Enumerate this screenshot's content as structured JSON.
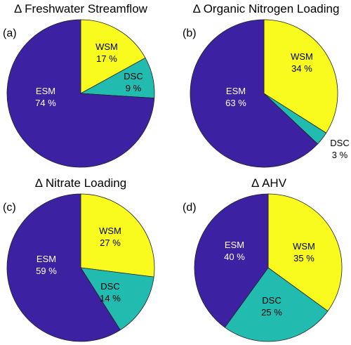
{
  "colors": {
    "ESM": "#3c22a3",
    "WSM": "#f9fa1e",
    "DSC": "#22bbb0",
    "text_dark": "#000000",
    "text_light": "#ffffff"
  },
  "chart_data": [
    {
      "type": "pie",
      "panel": "(a)",
      "title": "Δ Freshwater Streamflow",
      "slices": [
        {
          "label": "WSM",
          "value_text": "17 %",
          "value": 17
        },
        {
          "label": "DSC",
          "value_text": "9 %",
          "value": 9
        },
        {
          "label": "ESM",
          "value_text": "74 %",
          "value": 74
        }
      ]
    },
    {
      "type": "pie",
      "panel": "(b)",
      "title": "Δ Organic Nitrogen Loading",
      "slices": [
        {
          "label": "WSM",
          "value_text": "34 %",
          "value": 34
        },
        {
          "label": "DSC",
          "value_text": "3 %",
          "value": 3
        },
        {
          "label": "ESM",
          "value_text": "63 %",
          "value": 63
        }
      ]
    },
    {
      "type": "pie",
      "panel": "(c)",
      "title": "Δ Nitrate Loading",
      "slices": [
        {
          "label": "WSM",
          "value_text": "27 %",
          "value": 27
        },
        {
          "label": "DSC",
          "value_text": "14 %",
          "value": 14
        },
        {
          "label": "ESM",
          "value_text": "59 %",
          "value": 59
        }
      ]
    },
    {
      "type": "pie",
      "panel": "(d)",
      "title": "Δ AHV",
      "slices": [
        {
          "label": "WSM",
          "value_text": "35 %",
          "value": 35
        },
        {
          "label": "DSC",
          "value_text": "25 %",
          "value": 25
        },
        {
          "label": "ESM",
          "value_text": "40 %",
          "value": 40
        }
      ]
    }
  ]
}
